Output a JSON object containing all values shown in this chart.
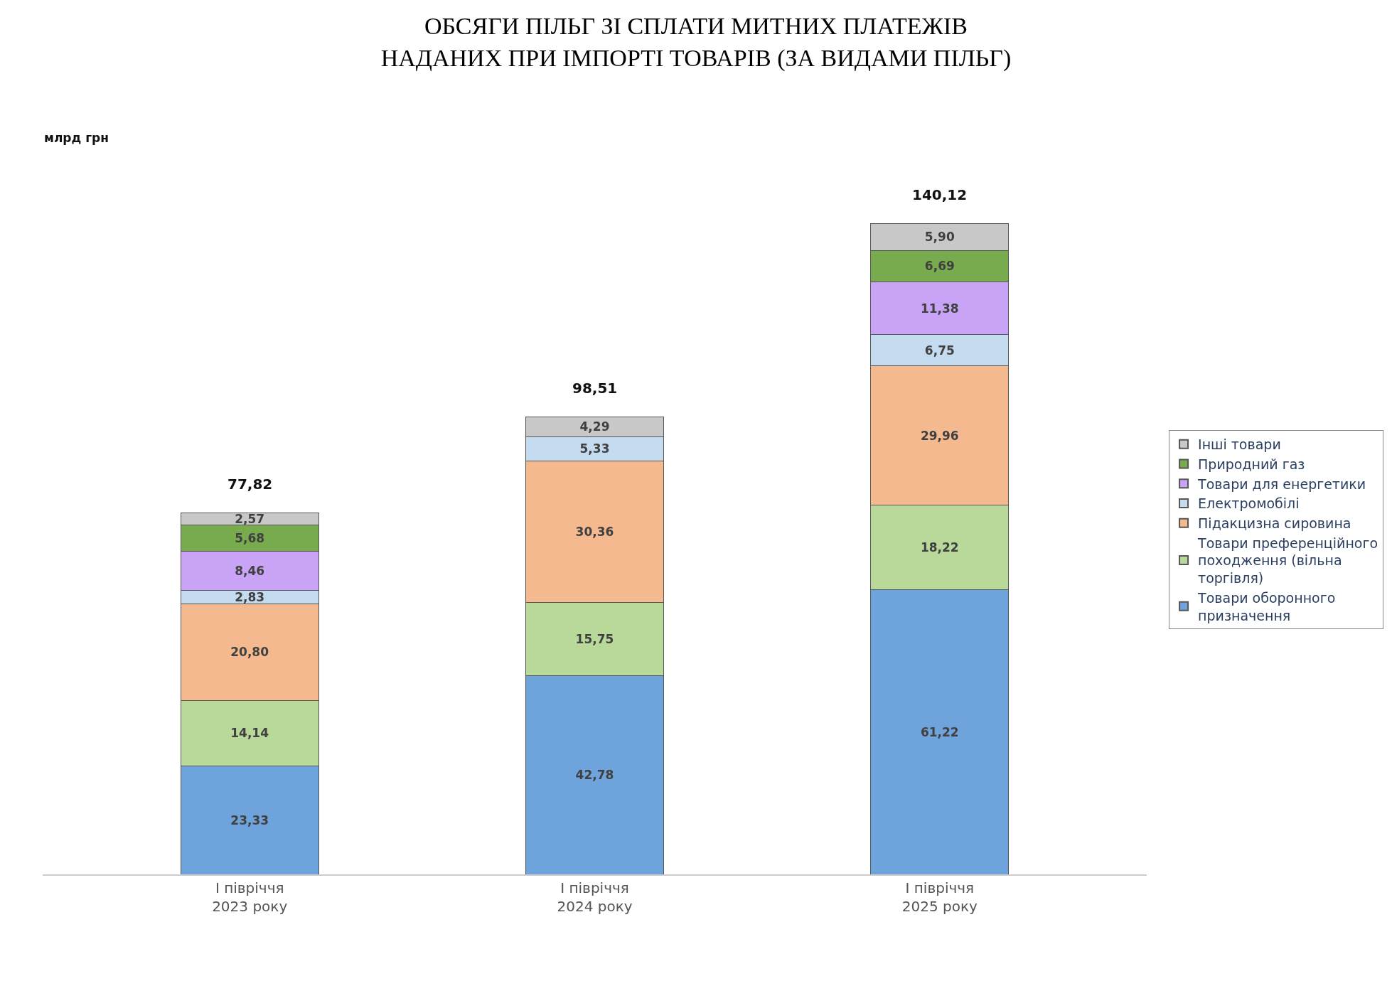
{
  "chart_data": {
    "type": "bar",
    "stacked": true,
    "title": "ОБСЯГИ ПІЛЬГ ЗІ СПЛАТИ МИТНИХ ПЛАТЕЖІВ\nНАДАНИХ ПРИ ІМПОРТІ ТОВАРІВ (ЗА ВИДАМИ ПІЛЬГ)",
    "annotations": [
      "млрд грн"
    ],
    "categories": [
      "І півріччя\n2023 року",
      "І півріччя\n2024 року",
      "І півріччя\n2025 року"
    ],
    "series": [
      {
        "name": "Товари оборонного призначення",
        "color": "#6fa3dc",
        "values": [
          23.33,
          42.78,
          61.22
        ],
        "value_labels": [
          "23,33",
          "42,78",
          "61,22"
        ]
      },
      {
        "name": "Товари преференційного походження (вільна торгівля)",
        "color": "#b9d99a",
        "values": [
          14.14,
          15.75,
          18.22
        ],
        "value_labels": [
          "14,14",
          "15,75",
          "18,22"
        ]
      },
      {
        "name": "Підакцизна сировина",
        "color": "#f4b98e",
        "values": [
          20.8,
          30.36,
          29.96
        ],
        "value_labels": [
          "20,80",
          "30,36",
          "29,96"
        ]
      },
      {
        "name": "Електромобілі",
        "color": "#c5dcf0",
        "values": [
          2.83,
          5.33,
          6.75
        ],
        "value_labels": [
          "2,83",
          "5,33",
          "6,75"
        ]
      },
      {
        "name": "Товари для енергетики",
        "color": "#c9a3f5",
        "values": [
          8.46,
          null,
          11.38
        ],
        "value_labels": [
          "8,46",
          null,
          "11,38"
        ]
      },
      {
        "name": "Природний газ",
        "color": "#77ab4e",
        "values": [
          5.68,
          null,
          6.69
        ],
        "value_labels": [
          "5,68",
          null,
          "6,69"
        ]
      },
      {
        "name": "Інші товари",
        "color": "#c8c8c8",
        "values": [
          2.57,
          4.29,
          5.9
        ],
        "value_labels": [
          "2,57",
          "4,29",
          "5,90"
        ]
      }
    ],
    "totals": [
      "77,82",
      "98,51",
      "140,12"
    ],
    "legend": "right"
  }
}
